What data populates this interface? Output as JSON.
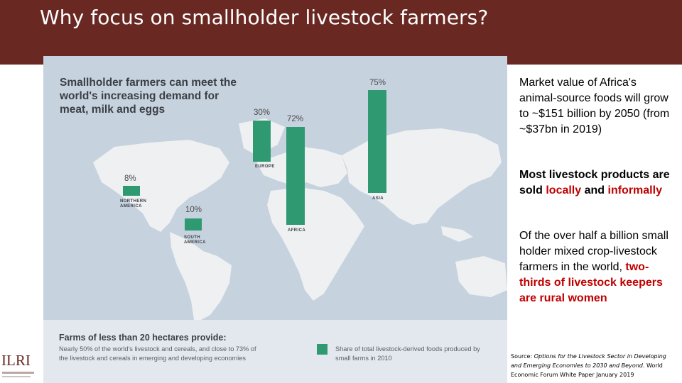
{
  "slide": {
    "title": "Why focus on smallholder livestock farmers?"
  },
  "infographic": {
    "heading": "Smallholder farmers can meet the world's increasing demand for meat, milk and eggs",
    "regions": [
      {
        "name": "NORTHERN AMERICA",
        "line1": "NORTHERN",
        "line2": "AMERICA",
        "pct_label": "8%",
        "share": 8
      },
      {
        "name": "SOUTH AMERICA",
        "line1": "SOUTH",
        "line2": "AMERICA",
        "pct_label": "10%",
        "share": 10
      },
      {
        "name": "EUROPE",
        "line1": "EUROPE",
        "line2": "",
        "pct_label": "30%",
        "share": 30
      },
      {
        "name": "AFRICA",
        "line1": "AFRICA",
        "line2": "",
        "pct_label": "72%",
        "share": 72
      },
      {
        "name": "ASIA",
        "line1": "ASIA",
        "line2": "",
        "pct_label": "75%",
        "share": 75
      }
    ],
    "footer_heading": "Farms of less than 20 hectares provide:",
    "footer_text": "Nearly 50% of the world's livestock and cereals, and close to 73% of the livestock and cereals in emerging and developing economies",
    "legend_text": "Share of total livestock-derived foods produced by small farms in 2010",
    "colors": {
      "bar": "#2f9a72",
      "ocean": "#c6d2de",
      "land": "#eef0f2"
    }
  },
  "side": {
    "p1": "Market value of Africa's animal-source foods will grow to ~$151 billion by 2050 (from ~$37bn in 2019)",
    "p2_a": "Most livestock products are sold ",
    "p2_b": "locally",
    "p2_c": " and ",
    "p2_d": "informally",
    "p3_a": "Of the over half a billion small holder mixed crop-livestock farmers in the world, ",
    "p3_b": "two-thirds of livestock keepers are rural women"
  },
  "source": {
    "prefix": "Source: ",
    "title": "Options for the Livestock Sector in Developing and Emerging Economies to 2030 and Beyond.",
    "suffix": " World Economic Forum White Paper January 2019"
  },
  "logo": {
    "text": "ILRI"
  },
  "theme": {
    "title_bar": "#692822",
    "highlight": "#c00000"
  }
}
